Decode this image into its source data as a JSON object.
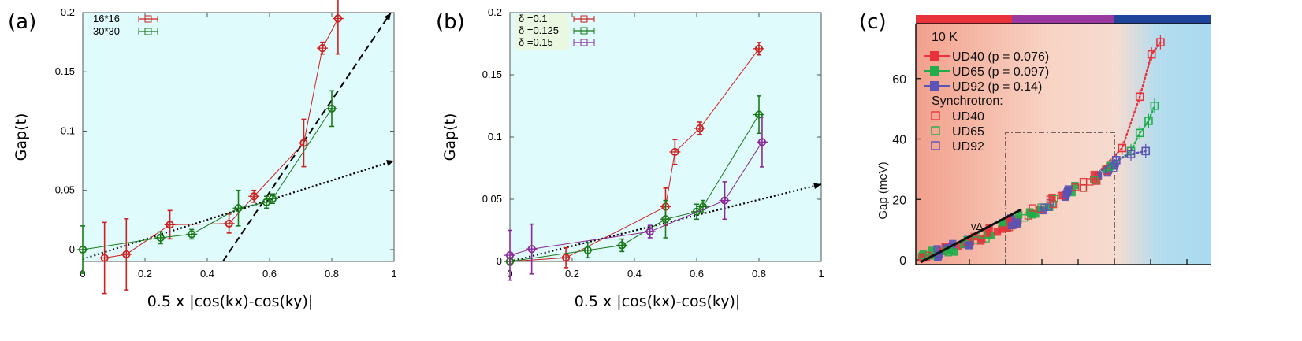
{
  "chart_data": [
    {
      "panel_label": "(a)",
      "type": "line",
      "xlabel": "0.5 x |cos(kx)-cos(ky)|",
      "ylabel": "Gap(t)",
      "xlim": [
        0,
        1
      ],
      "ylim": [
        -0.01,
        0.2
      ],
      "xticks": [
        "0",
        "0.2",
        "0.4",
        "0.6",
        "0.8",
        "1"
      ],
      "yticks": [
        "0",
        "0.05",
        "0.1",
        "0.15",
        "0.2"
      ],
      "legend": [
        "16*16",
        "30*30"
      ],
      "series": [
        {
          "name": "16*16",
          "color": "#cc2222",
          "x": [
            0.07,
            0.14,
            0.28,
            0.47,
            0.55,
            0.71,
            0.77,
            0.82
          ],
          "y": [
            -0.007,
            -0.004,
            0.021,
            0.022,
            0.045,
            0.09,
            0.17,
            0.195
          ],
          "yerr": [
            0.03,
            0.03,
            0.012,
            0.008,
            0.005,
            0.02,
            0.005,
            0.03
          ]
        },
        {
          "name": "30*30",
          "color": "#1a7a1a",
          "x": [
            0.0,
            0.25,
            0.35,
            0.5,
            0.59,
            0.61,
            0.8
          ],
          "y": [
            0.0,
            0.01,
            0.013,
            0.035,
            0.04,
            0.043,
            0.119
          ],
          "yerr": [
            0.02,
            0.005,
            0.004,
            0.015,
            0.005,
            0.004,
            0.015
          ]
        }
      ],
      "guides": [
        {
          "style": "dashed",
          "from": [
            0.45,
            -0.01
          ],
          "to": [
            0.99,
            0.2
          ]
        },
        {
          "style": "dotted",
          "from": [
            0.0,
            -0.008
          ],
          "to": [
            1.0,
            0.075
          ]
        }
      ]
    },
    {
      "panel_label": "(b)",
      "type": "line",
      "xlabel": "0.5 x |cos(kx)-cos(ky)|",
      "ylabel": "Gap(t)",
      "xlim": [
        0,
        1
      ],
      "ylim": [
        0,
        0.2
      ],
      "xticks": [
        "0",
        "0.2",
        "0.4",
        "0.6",
        "0.8",
        "1"
      ],
      "yticks": [
        "0",
        "0.05",
        "0.1",
        "0.15",
        "0.2"
      ],
      "legend": [
        "δ =0.1",
        "δ =0.125",
        "δ =0.15"
      ],
      "series": [
        {
          "name": "δ =0.1",
          "color": "#cc2222",
          "x": [
            0.0,
            0.18,
            0.5,
            0.53,
            0.61,
            0.8
          ],
          "y": [
            0.0,
            0.003,
            0.044,
            0.088,
            0.107,
            0.171
          ],
          "yerr": [
            0.003,
            0.008,
            0.015,
            0.01,
            0.005,
            0.005
          ]
        },
        {
          "name": "δ =0.125",
          "color": "#1a7a1a",
          "x": [
            0.0,
            0.25,
            0.36,
            0.5,
            0.6,
            0.62,
            0.8
          ],
          "y": [
            0.0,
            0.009,
            0.013,
            0.034,
            0.04,
            0.044,
            0.118
          ],
          "yerr": [
            0.003,
            0.006,
            0.005,
            0.015,
            0.006,
            0.005,
            0.015
          ]
        },
        {
          "name": "δ =0.15",
          "color": "#8a2a9a",
          "x": [
            0.0,
            0.07,
            0.45,
            0.69,
            0.81
          ],
          "y": [
            0.005,
            0.01,
            0.024,
            0.049,
            0.096
          ],
          "yerr": [
            0.02,
            0.02,
            0.005,
            0.015,
            0.02
          ]
        }
      ],
      "guides": [
        {
          "style": "dotted",
          "from": [
            0.0,
            0.0
          ],
          "to": [
            1.0,
            0.062
          ]
        }
      ]
    },
    {
      "panel_label": "(c)",
      "type": "scatter",
      "ylabel": "Gap (meV)",
      "xlabel": "",
      "ylim": [
        0,
        80
      ],
      "yticks": [
        "0",
        "20",
        "40",
        "60"
      ],
      "temperature": "10 K",
      "legend": [
        {
          "label": "UD40 (p = 0.076)",
          "color": "#e8323c",
          "filled": true
        },
        {
          "label": "UD65 (p = 0.097)",
          "color": "#1fae4a",
          "filled": true
        },
        {
          "label": "UD92 (p = 0.14)",
          "color": "#5b53b5",
          "filled": true
        },
        {
          "label": "Synchrotron:",
          "color": "#222222",
          "filled": false,
          "header": true
        },
        {
          "label": "UD40",
          "color": "#e8323c",
          "filled": false
        },
        {
          "label": "UD65",
          "color": "#1fae4a",
          "filled": false
        },
        {
          "label": "UD92",
          "color": "#5b53b5",
          "filled": false
        }
      ],
      "annotation": "vΔ",
      "band_colors": [
        "#e8323c",
        "#9a3aa0",
        "#20449a"
      ],
      "series": [
        {
          "name": "UD40 synchrotron",
          "color": "#e8323c",
          "x": [
            0.7,
            0.76,
            0.8,
            0.83
          ],
          "y": [
            37,
            54,
            68,
            72
          ]
        },
        {
          "name": "UD65 synchrotron",
          "color": "#1fae4a",
          "x": [
            0.66,
            0.73,
            0.76,
            0.79,
            0.81
          ],
          "y": [
            31,
            36,
            42,
            46,
            51
          ]
        },
        {
          "name": "UD92 synchrotron",
          "color": "#5b53b5",
          "x": [
            0.68,
            0.73,
            0.78
          ],
          "y": [
            33,
            35,
            36
          ]
        }
      ]
    }
  ]
}
